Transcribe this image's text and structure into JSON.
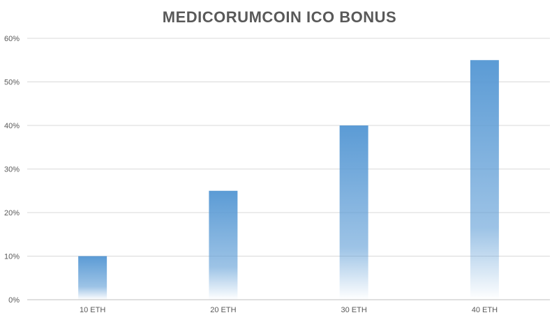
{
  "chart_data": {
    "type": "bar",
    "title": "MEDICORUMCOIN ICO BONUS",
    "categories": [
      "10 ETH",
      "20 ETH",
      "30 ETH",
      "40 ETH"
    ],
    "values": [
      10,
      25,
      40,
      55
    ],
    "ylim": [
      0,
      60
    ],
    "yticks": [
      0,
      10,
      20,
      30,
      40,
      50,
      60
    ],
    "ytick_labels": [
      "0%",
      "10%",
      "20%",
      "30%",
      "40%",
      "50%",
      "60%"
    ],
    "xlabel": "",
    "ylabel": "",
    "grid": true,
    "legend": "none",
    "colors": {
      "bar": "#5b9bd5",
      "grid": "#d9d9d9",
      "text": "#595959"
    }
  }
}
